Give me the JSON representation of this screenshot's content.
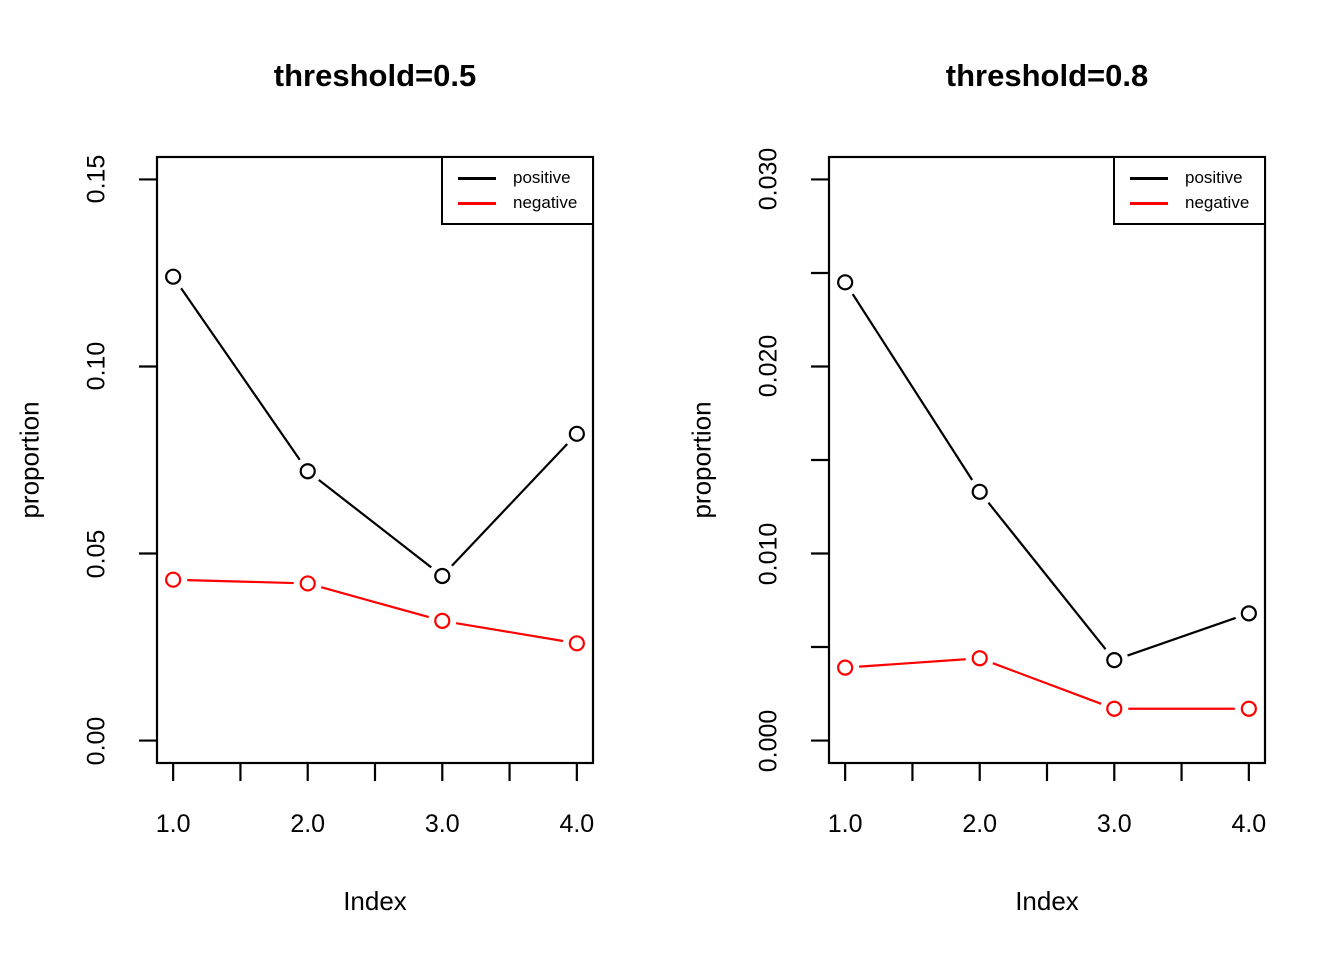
{
  "figure": {
    "background": "#ffffff",
    "axis_color": "#000000",
    "marker": "open-circle",
    "legend_entries": [
      "positive",
      "negative"
    ]
  },
  "chart_data": [
    {
      "type": "line",
      "title": "threshold=0.5",
      "xlabel": "Index",
      "ylabel": "proportion",
      "x": [
        1,
        2,
        3,
        4
      ],
      "series": [
        {
          "name": "positive",
          "color": "#000000",
          "values": [
            0.124,
            0.072,
            0.044,
            0.082
          ]
        },
        {
          "name": "negative",
          "color": "#ff0000",
          "values": [
            0.043,
            0.042,
            0.032,
            0.026
          ]
        }
      ],
      "xlim": [
        1,
        4
      ],
      "ylim": [
        0,
        0.15
      ],
      "xticks": [
        1,
        1.5,
        2,
        2.5,
        3,
        3.5,
        4
      ],
      "xtick_labels": [
        "1.0",
        "",
        "2.0",
        "",
        "3.0",
        "",
        "4.0"
      ],
      "yticks": [
        0,
        0.05,
        0.1,
        0.15
      ],
      "ytick_labels": [
        "0.00",
        "0.05",
        "0.10",
        "0.15"
      ],
      "grid": false,
      "legend_position": "topright"
    },
    {
      "type": "line",
      "title": "threshold=0.8",
      "xlabel": "Index",
      "ylabel": "proportion",
      "x": [
        1,
        2,
        3,
        4
      ],
      "series": [
        {
          "name": "positive",
          "color": "#000000",
          "values": [
            0.0245,
            0.0133,
            0.0043,
            0.0068
          ]
        },
        {
          "name": "negative",
          "color": "#ff0000",
          "values": [
            0.0039,
            0.0044,
            0.0017,
            0.0017
          ]
        }
      ],
      "xlim": [
        1,
        4
      ],
      "ylim": [
        0,
        0.03
      ],
      "xticks": [
        1,
        1.5,
        2,
        2.5,
        3,
        3.5,
        4
      ],
      "xtick_labels": [
        "1.0",
        "",
        "2.0",
        "",
        "3.0",
        "",
        "4.0"
      ],
      "yticks": [
        0,
        0.005,
        0.01,
        0.015,
        0.02,
        0.025,
        0.03
      ],
      "ytick_labels": [
        "0.000",
        "",
        "0.010",
        "",
        "0.020",
        "",
        "0.030"
      ],
      "grid": false,
      "legend_position": "topright"
    }
  ]
}
